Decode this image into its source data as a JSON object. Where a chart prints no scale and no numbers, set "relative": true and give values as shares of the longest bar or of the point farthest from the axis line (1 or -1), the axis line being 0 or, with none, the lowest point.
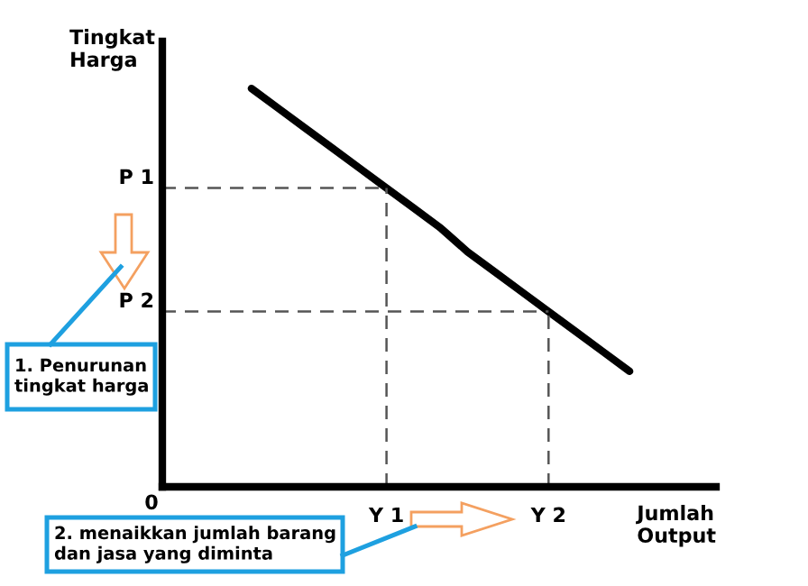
{
  "chart_data": {
    "type": "line",
    "relative": true,
    "xlabel": "Jumlah Output",
    "ylabel": "Tingkat Harga",
    "categories": [
      null,
      null,
      null,
      null,
      null,
      null,
      null,
      null,
      "Y 1",
      null,
      null,
      null,
      null,
      null,
      "Y 2",
      null,
      null,
      null
    ],
    "series": [
      {
        "color": "#000000",
        "values": [
          null,
          null,
          null,
          1,
          0.95,
          0.9,
          0.85,
          0.8,
          0.75,
          0.7,
          0.65,
          0.59,
          0.54,
          0.49,
          0.44,
          0.39,
          0.34,
          0.29
        ]
      }
    ],
    "ref_lines": [
      {
        "axis": "y",
        "value": 0.75,
        "label": "P 1",
        "line_style": "dashed",
        "color": "#555555"
      },
      {
        "axis": "y",
        "value": 0.44,
        "label": "P 2",
        "line_style": "dashed",
        "color": "#555555"
      },
      {
        "axis": "x",
        "value": "Y 1",
        "line_style": "dashed",
        "color": "#555555"
      },
      {
        "axis": "x",
        "value": "Y 2",
        "line_style": "dashed",
        "color": "#555555"
      }
    ],
    "annotations": [
      "0",
      "1. Penurunan\ntingkat harga",
      "2. menaikkan jumlah barang\ndan jasa yang diminta"
    ],
    "legend": false,
    "marker": "none",
    "line_style": "solid"
  }
}
